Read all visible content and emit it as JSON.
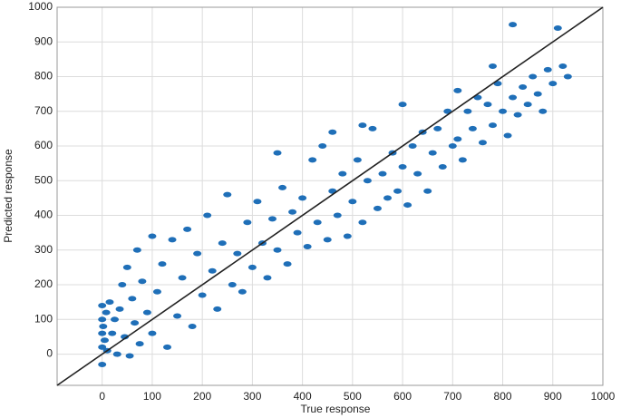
{
  "chart_data": {
    "type": "scatter",
    "x_label": "True response",
    "y_label": "Predicted response",
    "xlim": [
      -90,
      1000
    ],
    "ylim": [
      -90,
      1000
    ],
    "xticks": [
      0,
      100,
      200,
      300,
      400,
      500,
      600,
      700,
      800,
      900,
      1000
    ],
    "yticks": [
      0,
      100,
      200,
      300,
      400,
      500,
      600,
      700,
      800,
      900,
      1000
    ],
    "grid": true,
    "reference_line": true,
    "series": [
      {
        "color": "#1f6fb8",
        "x": [
          0,
          0,
          0,
          0,
          0,
          2,
          5,
          8,
          10,
          15,
          20,
          25,
          30,
          35,
          40,
          45,
          50,
          55,
          60,
          65,
          70,
          75,
          80,
          90,
          100,
          100,
          110,
          120,
          130,
          140,
          150,
          160,
          170,
          180,
          190,
          200,
          210,
          220,
          230,
          240,
          250,
          260,
          270,
          280,
          290,
          300,
          310,
          320,
          330,
          340,
          350,
          360,
          370,
          380,
          390,
          400,
          410,
          420,
          430,
          440,
          450,
          460,
          470,
          480,
          490,
          500,
          510,
          520,
          530,
          540,
          550,
          560,
          570,
          580,
          590,
          600,
          610,
          620,
          630,
          640,
          650,
          660,
          670,
          680,
          690,
          700,
          710,
          720,
          730,
          740,
          750,
          760,
          770,
          780,
          790,
          800,
          810,
          820,
          830,
          840,
          850,
          860,
          870,
          880,
          890,
          900,
          910,
          920,
          930,
          820,
          780,
          520,
          460,
          710,
          600,
          350
        ],
        "values": [
          -30,
          20,
          60,
          100,
          140,
          80,
          40,
          120,
          10,
          150,
          60,
          100,
          0,
          130,
          200,
          50,
          250,
          -5,
          160,
          90,
          300,
          30,
          210,
          120,
          340,
          60,
          180,
          260,
          20,
          330,
          110,
          220,
          360,
          80,
          290,
          170,
          400,
          240,
          130,
          320,
          460,
          200,
          290,
          180,
          380,
          250,
          440,
          320,
          220,
          390,
          300,
          480,
          260,
          410,
          350,
          450,
          310,
          560,
          380,
          600,
          330,
          470,
          400,
          520,
          340,
          440,
          560,
          380,
          500,
          650,
          420,
          520,
          450,
          580,
          470,
          540,
          430,
          600,
          520,
          640,
          470,
          580,
          650,
          540,
          700,
          600,
          620,
          560,
          700,
          650,
          740,
          610,
          720,
          660,
          780,
          700,
          630,
          740,
          690,
          770,
          720,
          800,
          750,
          700,
          820,
          780,
          940,
          830,
          800,
          950,
          830,
          660,
          640,
          760,
          720,
          580
        ]
      }
    ]
  }
}
